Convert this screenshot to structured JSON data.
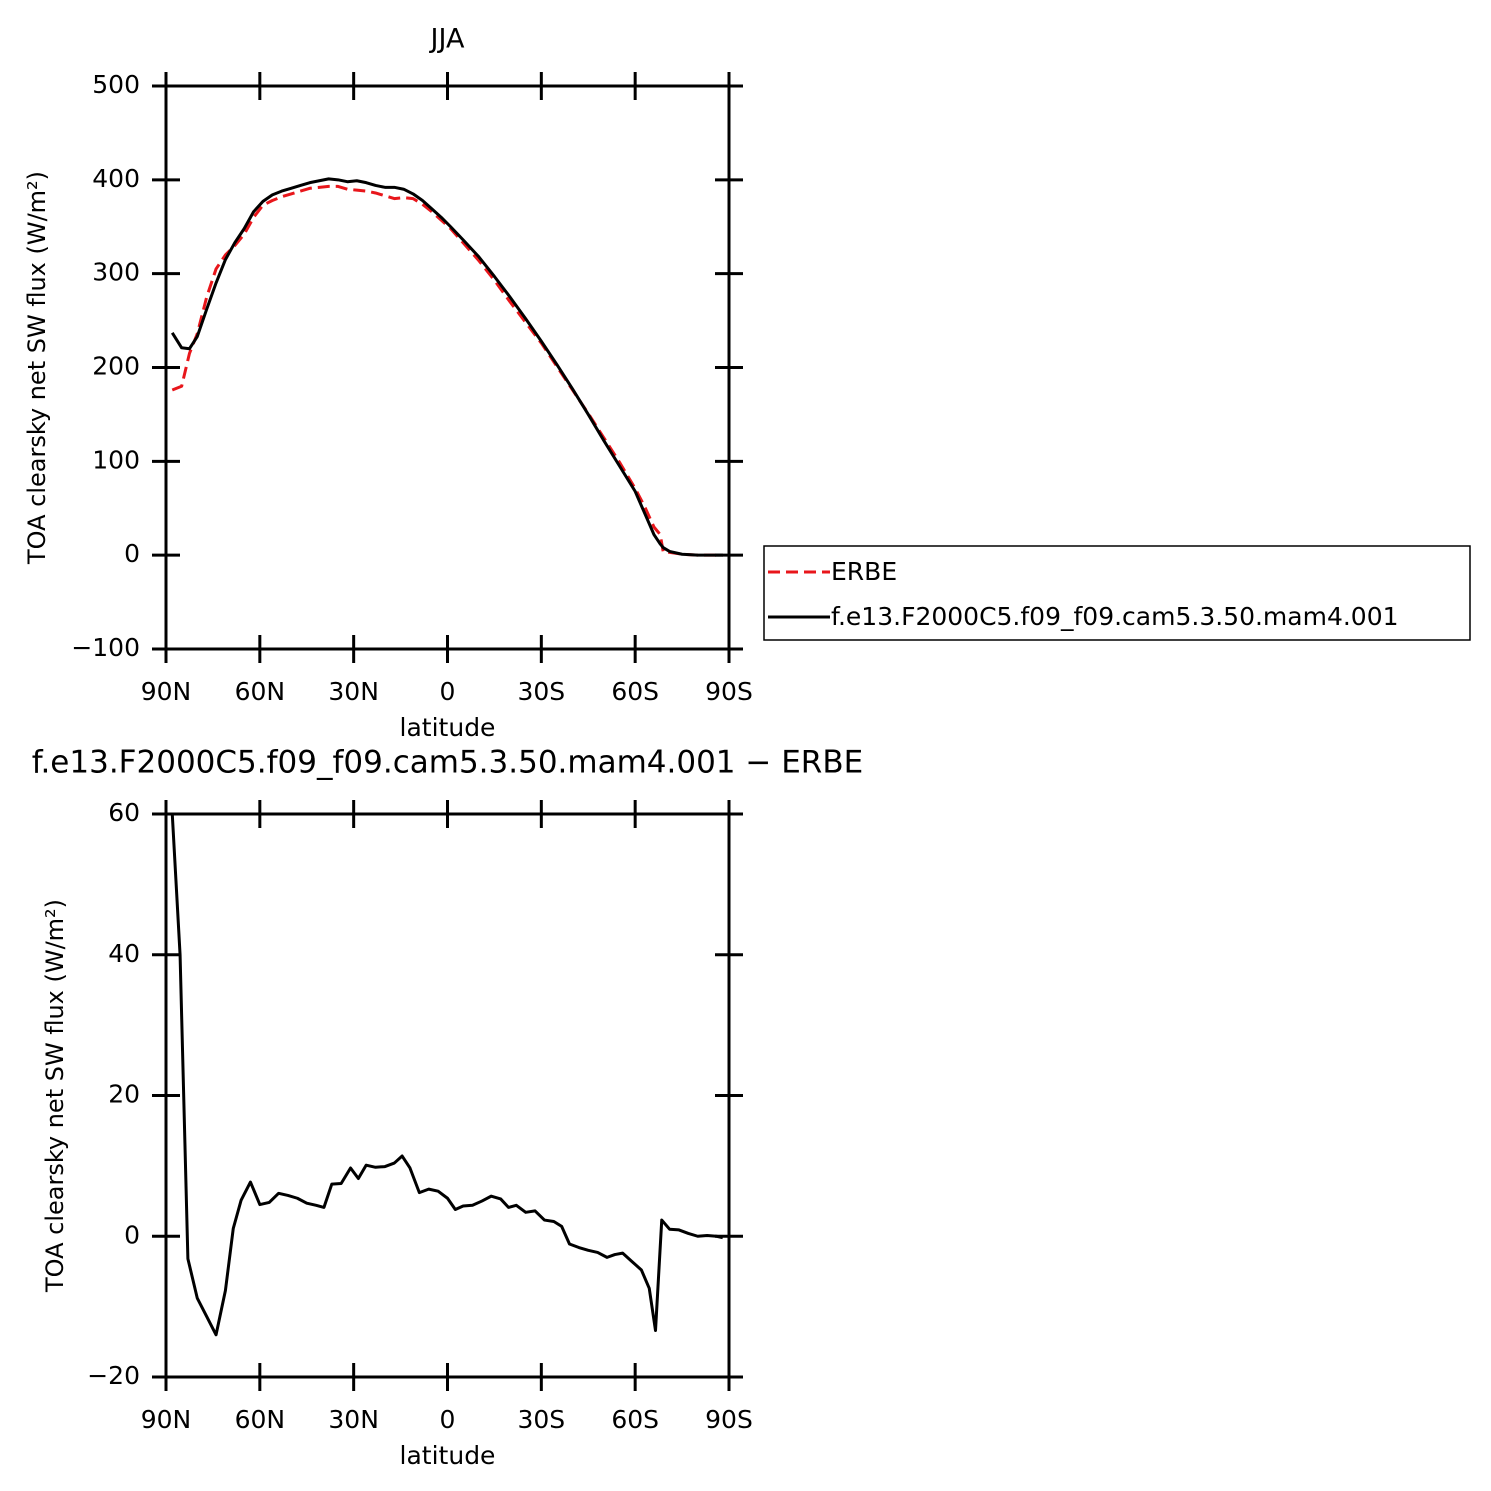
{
  "chart_data": [
    {
      "type": "line",
      "title": "JJA",
      "x_label": "latitude",
      "y_label": "TOA clearsky net SW flux (W/m²)",
      "x": [
        88,
        85,
        82.5,
        80,
        77,
        74,
        71,
        68,
        65,
        62,
        59,
        56,
        53,
        50,
        47,
        44,
        41,
        38,
        35,
        32,
        29,
        26,
        23,
        20,
        17,
        14,
        11,
        8,
        5,
        2,
        -1,
        -5,
        -10,
        -15,
        -20,
        -25,
        -30,
        -35,
        -40,
        -45,
        -50,
        -55,
        -60,
        -63,
        -66,
        -68,
        -69,
        -71,
        -75,
        -80,
        -85,
        -88
      ],
      "series": [
        {
          "name": "ERBE",
          "color": "#e8161b",
          "line_style": "dashed",
          "values": [
            176,
            180,
            215,
            236,
            275,
            305,
            320,
            330,
            342,
            360,
            373,
            378,
            382,
            385,
            388,
            391,
            392,
            393,
            393,
            390,
            389,
            388,
            386,
            383,
            380,
            381,
            380,
            374,
            366,
            357,
            348,
            333,
            314,
            293,
            270,
            248,
            226,
            201,
            176,
            151,
            125,
            99,
            71,
            52,
            30,
            22,
            3,
            3,
            1,
            0,
            0,
            0
          ]
        },
        {
          "name": "f.e13.F2000C5.f09_f09.cam5.3.50.mam4.001",
          "color": "#000000",
          "line_style": "solid",
          "values": [
            237,
            221,
            220,
            233,
            262,
            290,
            315,
            333,
            348,
            366,
            377,
            384,
            388,
            391,
            394,
            397,
            399,
            401,
            400,
            398,
            399,
            397,
            394,
            392,
            392,
            390,
            385,
            378,
            369,
            360,
            350,
            336,
            318,
            297,
            275,
            252,
            228,
            203,
            177,
            150,
            122,
            95,
            68,
            45,
            22,
            12,
            8,
            4,
            1,
            0,
            0,
            0
          ]
        }
      ],
      "xlim": [
        90,
        -90
      ],
      "xticks": [
        {
          "value": 90,
          "label": "90N"
        },
        {
          "value": 60,
          "label": "60N"
        },
        {
          "value": 30,
          "label": "30N"
        },
        0,
        {
          "value": -30,
          "label": "30S"
        },
        {
          "value": -60,
          "label": "60S"
        },
        {
          "value": -90,
          "label": "90S"
        }
      ],
      "ylim": [
        -100,
        500
      ],
      "yticks": [
        {
          "value": -100,
          "label": "−100"
        },
        0,
        100,
        200,
        300,
        400,
        500
      ],
      "legend": "right"
    },
    {
      "type": "line",
      "title": "f.e13.F2000C5.f09_f09.cam5.3.50.mam4.001 − ERBE",
      "x_label": "latitude",
      "y_label": "TOA clearsky net SW flux (W/m²)",
      "x": [
        88,
        85.5,
        83,
        80,
        77,
        74,
        71,
        68.5,
        66,
        63,
        60,
        57,
        54,
        51,
        48,
        45,
        42,
        39.5,
        37,
        34,
        31,
        28.5,
        26,
        23,
        20,
        17,
        14.5,
        12,
        9,
        6,
        3,
        0,
        -2.5,
        -5,
        -8,
        -11,
        -14,
        -17,
        -19.5,
        -22,
        -25,
        -28,
        -31,
        -34,
        -36.5,
        -39,
        -42,
        -45,
        -48,
        -51,
        -53.5,
        -56,
        -59,
        -62,
        -64.5,
        -66.5,
        -68.5,
        -71,
        -74,
        -77,
        -80,
        -83,
        -86,
        -88
      ],
      "series": [
        {
          "color": "#000000",
          "line_style": "solid",
          "values": [
            60,
            40,
            -3.2,
            -8.8,
            -11.4,
            -14,
            -7.7,
            1.1,
            5.1,
            7.7,
            4.5,
            4.8,
            6.1,
            5.8,
            5.4,
            4.7,
            4.4,
            4.1,
            7.4,
            7.5,
            9.7,
            8.2,
            10.1,
            9.8,
            9.9,
            10.4,
            11.4,
            9.7,
            6.2,
            6.7,
            6.4,
            5.4,
            3.8,
            4.3,
            4.4,
            5,
            5.7,
            5.3,
            4.1,
            4.4,
            3.4,
            3.6,
            2.3,
            2.1,
            1.4,
            -1.1,
            -1.6,
            -2,
            -2.3,
            -3,
            -2.6,
            -2.4,
            -3.6,
            -4.8,
            -7.4,
            -13.4,
            2.3,
            1,
            0.9,
            0.4,
            0,
            0.1,
            0,
            -0.2
          ]
        }
      ],
      "xlim": [
        90,
        -90
      ],
      "xticks": [
        {
          "value": 90,
          "label": "90N"
        },
        {
          "value": 60,
          "label": "60N"
        },
        {
          "value": 30,
          "label": "30N"
        },
        0,
        {
          "value": -30,
          "label": "30S"
        },
        {
          "value": -60,
          "label": "60S"
        },
        {
          "value": -90,
          "label": "90S"
        }
      ],
      "ylim": [
        -20,
        60
      ],
      "yticks": [
        {
          "value": -20,
          "label": "−20"
        },
        0,
        20,
        40,
        60
      ]
    }
  ]
}
